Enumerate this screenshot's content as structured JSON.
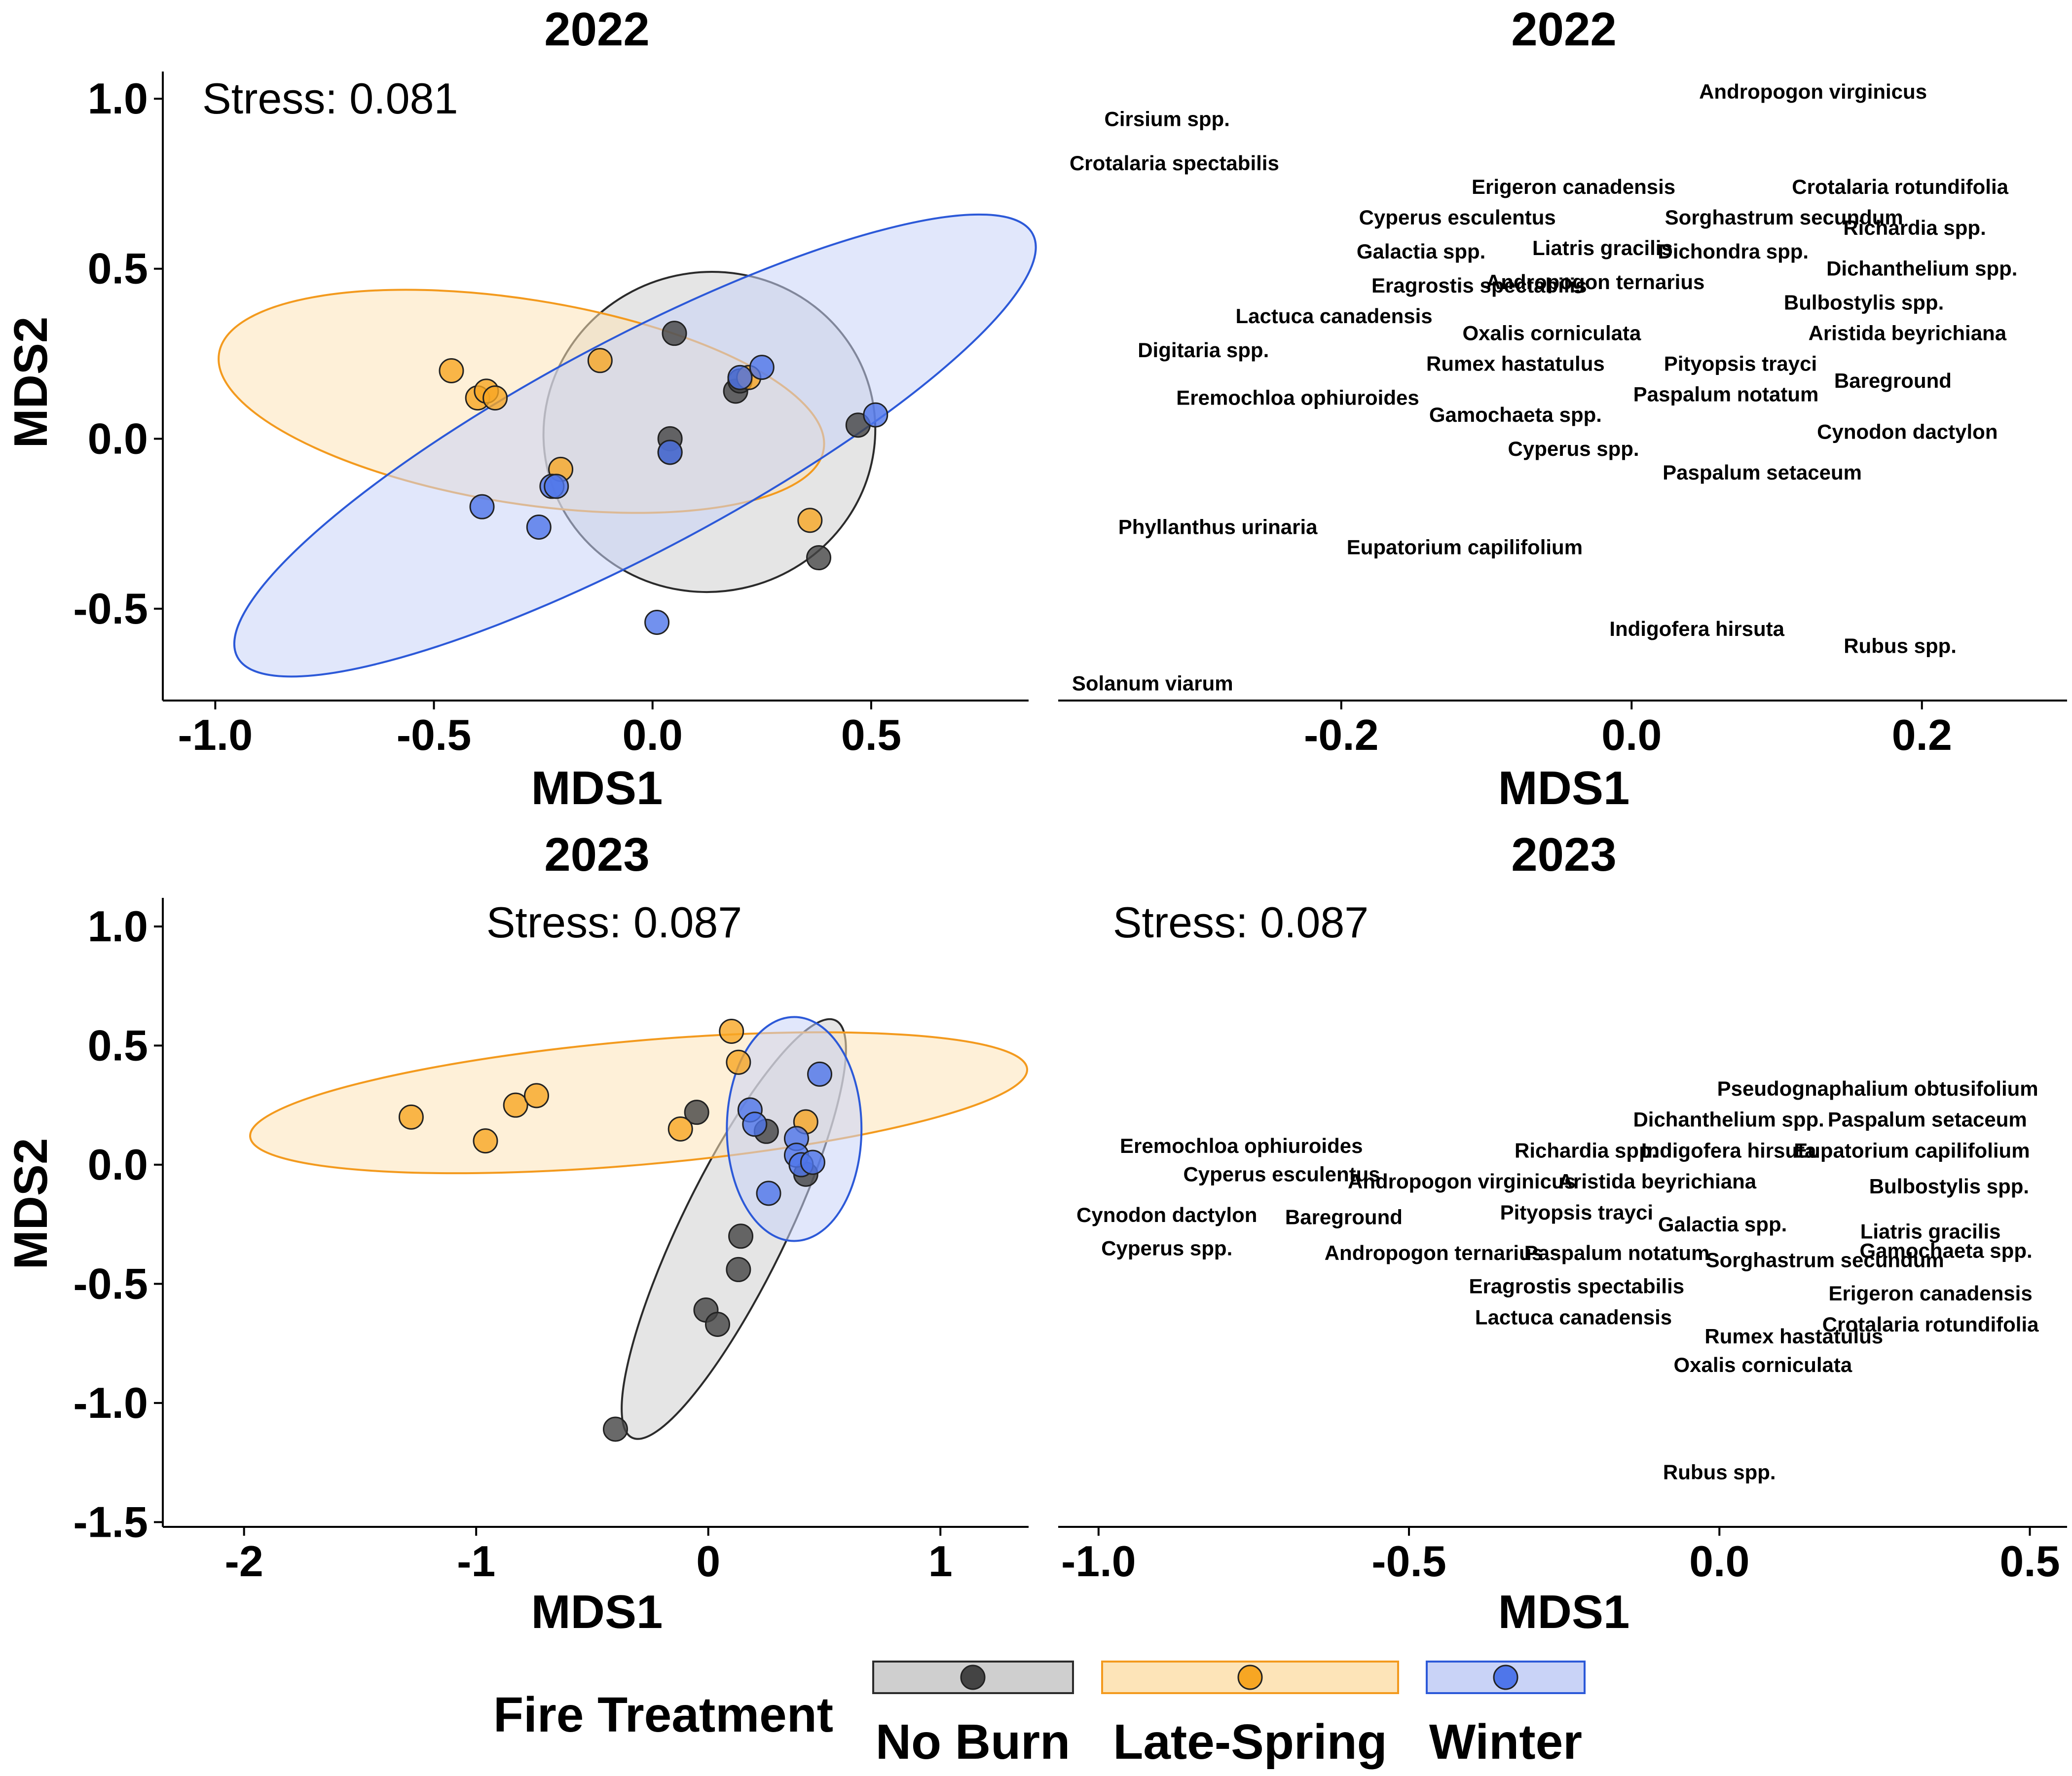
{
  "legend": {
    "title": "Fire Treatment",
    "entries": [
      {
        "label": "No Burn",
        "fill": "#cfcfcf",
        "border": "#2b2b2b",
        "point": "#444444"
      },
      {
        "label": "Late-Spring",
        "fill": "#fde4b8",
        "border": "#f39a1e",
        "point": "#f7a623"
      },
      {
        "label": "Winter",
        "fill": "#c9d3f7",
        "border": "#2c59d8",
        "point": "#4f76ea"
      }
    ]
  },
  "chart_data": [
    {
      "type": "scatter",
      "title": "2022",
      "xlabel": "MDS1",
      "ylabel": "MDS2",
      "stress": "Stress: 0.081",
      "xlim": [
        -1.12,
        0.86
      ],
      "ylim": [
        -0.77,
        1.08
      ],
      "xticks": [
        -1.0,
        -0.5,
        0.0,
        0.5
      ],
      "xtick_labels": [
        "-1.0",
        "-0.5",
        "0.0",
        "0.5"
      ],
      "yticks": [
        -0.5,
        0.0,
        0.5,
        1.0
      ],
      "ytick_labels": [
        "-0.5",
        "0.0",
        "0.5",
        "1.0"
      ],
      "ellipses": [
        {
          "group": "No Burn",
          "cx": 0.13,
          "cy": 0.02,
          "rx": 0.38,
          "ry": 0.47,
          "angle": 12
        },
        {
          "group": "Late-Spring",
          "cx": -0.3,
          "cy": 0.11,
          "rx": 0.7,
          "ry": 0.3,
          "angle": -9
        },
        {
          "group": "Winter",
          "cx": -0.04,
          "cy": -0.02,
          "rx": 1.03,
          "ry": 0.31,
          "angle": 28
        }
      ],
      "series": [
        {
          "name": "No Burn",
          "x": [
            0.05,
            0.04,
            0.04,
            0.19,
            0.2,
            0.38,
            0.47
          ],
          "y": [
            0.31,
            0.0,
            -0.04,
            0.14,
            0.17,
            -0.35,
            0.04
          ]
        },
        {
          "name": "Late-Spring",
          "x": [
            -0.46,
            -0.4,
            -0.38,
            -0.36,
            -0.12,
            -0.21,
            0.36,
            0.22
          ],
          "y": [
            0.2,
            0.12,
            0.14,
            0.12,
            0.23,
            -0.09,
            -0.24,
            0.18
          ]
        },
        {
          "name": "Winter",
          "x": [
            -0.39,
            -0.26,
            -0.23,
            -0.22,
            0.01,
            0.04,
            0.2,
            0.25,
            0.51
          ],
          "y": [
            -0.2,
            -0.26,
            -0.14,
            -0.14,
            -0.54,
            -0.04,
            0.18,
            0.21,
            0.07
          ]
        }
      ]
    },
    {
      "type": "scatter",
      "title": "2022",
      "xlabel": "MDS1",
      "ylabel": "",
      "stress": "",
      "xlim": [
        -0.395,
        0.3
      ],
      "ylim": [
        -0.77,
        1.08
      ],
      "xticks": [
        -0.2,
        0.0,
        0.2
      ],
      "xtick_labels": [
        "-0.2",
        "0.0",
        "0.2"
      ],
      "yticks": [],
      "ytick_labels": [],
      "labels": [
        {
          "text": "Andropogon virginicus",
          "x": 0.125,
          "y": 1.0
        },
        {
          "text": "Cirsium spp.",
          "x": -0.32,
          "y": 0.92
        },
        {
          "text": "Crotalaria spectabilis",
          "x": -0.315,
          "y": 0.79
        },
        {
          "text": "Erigeron canadensis",
          "x": -0.04,
          "y": 0.72
        },
        {
          "text": "Crotalaria rotundifolia",
          "x": 0.185,
          "y": 0.72
        },
        {
          "text": "Cyperus esculentus",
          "x": -0.12,
          "y": 0.63
        },
        {
          "text": "Sorghastrum secundum",
          "x": 0.105,
          "y": 0.63
        },
        {
          "text": "Richardia spp.",
          "x": 0.195,
          "y": 0.6
        },
        {
          "text": "Liatris gracilis",
          "x": -0.02,
          "y": 0.54
        },
        {
          "text": "Galactia spp.",
          "x": -0.145,
          "y": 0.53
        },
        {
          "text": "Dichondra spp.",
          "x": 0.07,
          "y": 0.53
        },
        {
          "text": "Dichanthelium spp.",
          "x": 0.2,
          "y": 0.48
        },
        {
          "text": "Eragrostis spectabilis",
          "x": -0.105,
          "y": 0.43
        },
        {
          "text": "Andropogon ternarius",
          "x": -0.025,
          "y": 0.44
        },
        {
          "text": "Bulbostylis spp.",
          "x": 0.16,
          "y": 0.38
        },
        {
          "text": "Lactuca canadensis",
          "x": -0.205,
          "y": 0.34
        },
        {
          "text": "Aristida beyrichiana",
          "x": 0.19,
          "y": 0.29
        },
        {
          "text": "Oxalis corniculata",
          "x": -0.055,
          "y": 0.29
        },
        {
          "text": "Digitaria spp.",
          "x": -0.295,
          "y": 0.24
        },
        {
          "text": "Rumex hastatulus",
          "x": -0.08,
          "y": 0.2
        },
        {
          "text": "Pityopsis trayci",
          "x": 0.075,
          "y": 0.2
        },
        {
          "text": "Bareground",
          "x": 0.18,
          "y": 0.15
        },
        {
          "text": "Eremochloa ophiuroides",
          "x": -0.23,
          "y": 0.1
        },
        {
          "text": "Paspalum notatum",
          "x": 0.065,
          "y": 0.11
        },
        {
          "text": "Gamochaeta spp.",
          "x": -0.08,
          "y": 0.05
        },
        {
          "text": "Cynodon dactylon",
          "x": 0.19,
          "y": 0.0
        },
        {
          "text": "Cyperus spp.",
          "x": -0.04,
          "y": -0.05
        },
        {
          "text": "Paspalum setaceum",
          "x": 0.09,
          "y": -0.12
        },
        {
          "text": "Phyllanthus urinaria",
          "x": -0.285,
          "y": -0.28
        },
        {
          "text": "Eupatorium capilifolium",
          "x": -0.115,
          "y": -0.34
        },
        {
          "text": "Indigofera hirsuta",
          "x": 0.045,
          "y": -0.58
        },
        {
          "text": "Rubus spp.",
          "x": 0.185,
          "y": -0.63
        },
        {
          "text": "Solanum viarum",
          "x": -0.33,
          "y": -0.74
        }
      ]
    },
    {
      "type": "scatter",
      "title": "2023",
      "xlabel": "MDS1",
      "ylabel": "MDS2",
      "stress": "Stress: 0.087",
      "xlim": [
        -2.35,
        1.38
      ],
      "ylim": [
        -1.52,
        1.12
      ],
      "xticks": [
        -2,
        -1,
        0,
        1
      ],
      "xtick_labels": [
        "-2",
        "-1",
        "0",
        "1"
      ],
      "yticks": [
        -1.5,
        -1.0,
        -0.5,
        0.0,
        0.5,
        1.0
      ],
      "ytick_labels": [
        "-1.5",
        "-1.0",
        "-0.5",
        "0.0",
        "0.5",
        "1.0"
      ],
      "ellipses": [
        {
          "group": "No Burn",
          "cx": 0.11,
          "cy": -0.27,
          "rx": 1.0,
          "ry": 0.22,
          "angle": 64
        },
        {
          "group": "Late-Spring",
          "cx": -0.3,
          "cy": 0.26,
          "rx": 1.68,
          "ry": 0.26,
          "angle": 5
        },
        {
          "group": "Winter",
          "cx": 0.37,
          "cy": 0.15,
          "rx": 0.29,
          "ry": 0.47,
          "angle": 0
        }
      ],
      "series": [
        {
          "name": "No Burn",
          "x": [
            -0.05,
            0.25,
            0.42,
            0.14,
            0.13,
            -0.01,
            0.04,
            -0.4
          ],
          "y": [
            0.22,
            0.14,
            -0.04,
            -0.3,
            -0.44,
            -0.61,
            -0.67,
            -1.11
          ]
        },
        {
          "name": "Late-Spring",
          "x": [
            -1.28,
            -0.96,
            -0.83,
            -0.74,
            -0.12,
            0.1,
            0.13,
            0.42
          ],
          "y": [
            0.2,
            0.1,
            0.25,
            0.29,
            0.15,
            0.56,
            0.43,
            0.18
          ]
        },
        {
          "name": "Winter",
          "x": [
            0.48,
            0.18,
            0.2,
            0.38,
            0.38,
            0.4,
            0.45,
            0.26
          ],
          "y": [
            0.38,
            0.23,
            0.17,
            0.11,
            0.04,
            0.0,
            0.01,
            -0.12
          ]
        }
      ]
    },
    {
      "type": "scatter",
      "title": "2023",
      "xlabel": "MDS1",
      "ylabel": "",
      "stress": "Stress: 0.087",
      "xlim": [
        -1.065,
        0.56
      ],
      "ylim": [
        -1.52,
        1.12
      ],
      "xticks": [
        -1.0,
        -0.5,
        0.0,
        0.5
      ],
      "xtick_labels": [
        "-1.0",
        "-0.5",
        "0.0",
        "0.5"
      ],
      "yticks": [],
      "ytick_labels": [],
      "labels": [
        {
          "text": "Pseudognaphalium obtusifolium",
          "x": 0.255,
          "y": 0.29
        },
        {
          "text": "Dichanthelium spp.",
          "x": 0.015,
          "y": 0.16
        },
        {
          "text": "Paspalum setaceum",
          "x": 0.335,
          "y": 0.16
        },
        {
          "text": "Eremochloa ophiuroides",
          "x": -0.77,
          "y": 0.05
        },
        {
          "text": "Richardia spp.",
          "x": -0.215,
          "y": 0.03
        },
        {
          "text": "Indigofera hirsuta",
          "x": 0.015,
          "y": 0.03
        },
        {
          "text": "Eupatorium capilifolium",
          "x": 0.31,
          "y": 0.03
        },
        {
          "text": "Cyperus esculentus",
          "x": -0.705,
          "y": -0.07
        },
        {
          "text": "Andropogon virginicus",
          "x": -0.415,
          "y": -0.1
        },
        {
          "text": "Aristida beyrichiana",
          "x": -0.1,
          "y": -0.1
        },
        {
          "text": "Bulbostylis spp.",
          "x": 0.37,
          "y": -0.12
        },
        {
          "text": "Cynodon dactylon",
          "x": -0.89,
          "y": -0.24
        },
        {
          "text": "Bareground",
          "x": -0.605,
          "y": -0.25
        },
        {
          "text": "Pityopsis trayci",
          "x": -0.23,
          "y": -0.23
        },
        {
          "text": "Galactia spp.",
          "x": 0.005,
          "y": -0.28
        },
        {
          "text": "Liatris gracilis",
          "x": 0.34,
          "y": -0.31
        },
        {
          "text": "Cyperus spp.",
          "x": -0.89,
          "y": -0.38
        },
        {
          "text": "Andropogon ternarius",
          "x": -0.46,
          "y": -0.4
        },
        {
          "text": "Paspalum notatum",
          "x": -0.165,
          "y": -0.4
        },
        {
          "text": "Gamochaeta spp.",
          "x": 0.365,
          "y": -0.39
        },
        {
          "text": "Sorghastrum secundum",
          "x": 0.17,
          "y": -0.43
        },
        {
          "text": "Eragrostis spectabilis",
          "x": -0.23,
          "y": -0.54
        },
        {
          "text": "Erigeron canadensis",
          "x": 0.34,
          "y": -0.57
        },
        {
          "text": "Lactuca canadensis",
          "x": -0.235,
          "y": -0.67
        },
        {
          "text": "Crotalaria rotundifolia",
          "x": 0.34,
          "y": -0.7
        },
        {
          "text": "Rumex hastatulus",
          "x": 0.12,
          "y": -0.75
        },
        {
          "text": "Oxalis corniculata",
          "x": 0.07,
          "y": -0.87
        },
        {
          "text": "Rubus spp.",
          "x": 0.0,
          "y": -1.32
        }
      ]
    }
  ]
}
